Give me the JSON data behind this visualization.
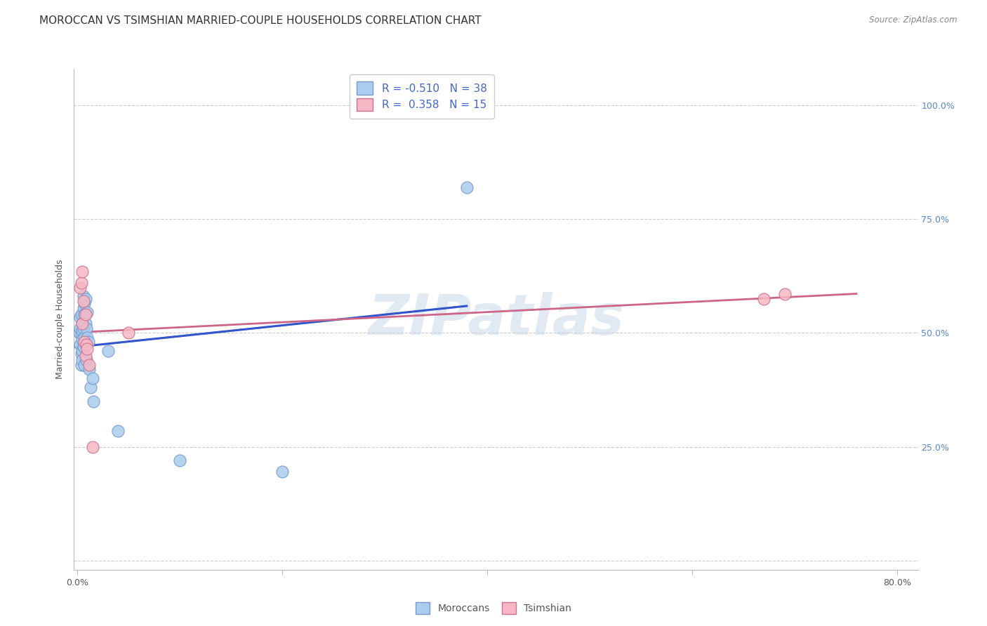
{
  "title": "MOROCCAN VS TSIMSHIAN MARRIED-COUPLE HOUSEHOLDS CORRELATION CHART",
  "source": "Source: ZipAtlas.com",
  "ylabel": "Married-couple Households",
  "watermark": "ZIPatlas",
  "xlim": [
    -0.003,
    0.82
  ],
  "ylim": [
    -0.02,
    1.08
  ],
  "xtick_vals": [
    0.0,
    0.2,
    0.4,
    0.6,
    0.8
  ],
  "xtick_labels": [
    "0.0%",
    "",
    "",
    "",
    "80.0%"
  ],
  "ytick_vals": [
    0.0,
    0.25,
    0.5,
    0.75,
    1.0
  ],
  "ytick_labels_right": [
    "",
    "25.0%",
    "50.0%",
    "75.0%",
    "100.0%"
  ],
  "moroccan_color": "#aaccee",
  "moroccan_edge": "#7799cc",
  "tsimshian_color": "#f5b8c4",
  "tsimshian_edge": "#d07090",
  "moroccan_line_color": "#3355cc",
  "tsimshian_line_color": "#cc6688",
  "ext_line_color": "#99aabb",
  "moroccan_R": -0.51,
  "moroccan_N": 38,
  "tsimshian_R": 0.358,
  "tsimshian_N": 15,
  "moroccan_x": [
    0.002,
    0.003,
    0.003,
    0.003,
    0.004,
    0.004,
    0.004,
    0.004,
    0.005,
    0.005,
    0.005,
    0.005,
    0.005,
    0.006,
    0.006,
    0.006,
    0.006,
    0.007,
    0.007,
    0.007,
    0.007,
    0.008,
    0.008,
    0.008,
    0.009,
    0.009,
    0.01,
    0.01,
    0.011,
    0.012,
    0.013,
    0.015,
    0.016,
    0.03,
    0.04,
    0.1,
    0.2,
    0.38
  ],
  "moroccan_y": [
    0.5,
    0.535,
    0.475,
    0.51,
    0.54,
    0.495,
    0.455,
    0.43,
    0.52,
    0.505,
    0.485,
    0.46,
    0.44,
    0.58,
    0.555,
    0.51,
    0.47,
    0.565,
    0.54,
    0.49,
    0.43,
    0.575,
    0.52,
    0.48,
    0.51,
    0.44,
    0.545,
    0.49,
    0.48,
    0.42,
    0.38,
    0.4,
    0.35,
    0.46,
    0.285,
    0.22,
    0.195,
    0.82
  ],
  "tsimshian_x": [
    0.003,
    0.004,
    0.005,
    0.006,
    0.007,
    0.008,
    0.008,
    0.009,
    0.01,
    0.012,
    0.015,
    0.05,
    0.67,
    0.69,
    0.005
  ],
  "tsimshian_y": [
    0.6,
    0.61,
    0.52,
    0.57,
    0.48,
    0.54,
    0.45,
    0.475,
    0.465,
    0.43,
    0.25,
    0.5,
    0.575,
    0.585,
    0.635
  ],
  "grid_color": "#cccccc",
  "bg_color": "#ffffff",
  "title_fs": 11,
  "ylabel_fs": 9,
  "tick_fs": 9,
  "leg_fs": 11,
  "source_fs": 8.5,
  "r_color": "#4466cc",
  "n_color": "#4466cc"
}
